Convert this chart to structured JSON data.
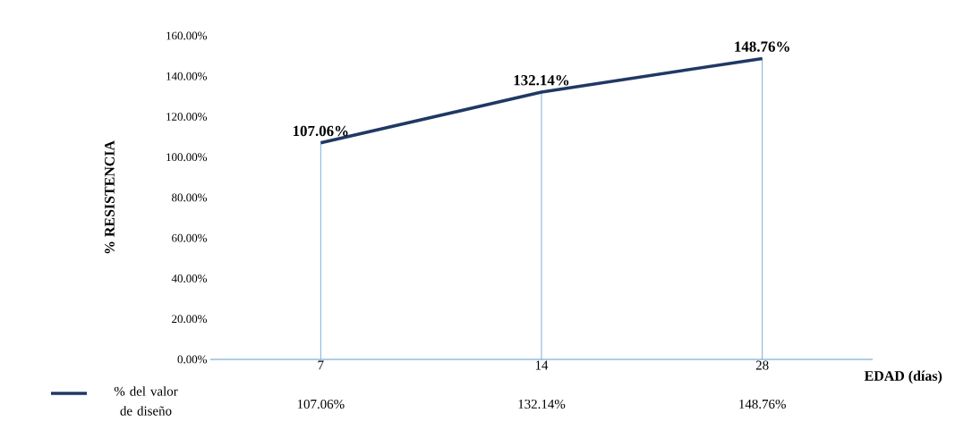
{
  "chart_data": {
    "type": "line",
    "ylabel": "% RESISTENCIA",
    "xlabel": "EDAD (días)",
    "categories": [
      "7",
      "14",
      "28"
    ],
    "series": [
      {
        "name": "% del valor de diseño",
        "color": "#203864",
        "values": [
          107.06,
          132.14,
          148.76
        ],
        "value_labels": [
          "107.06%",
          "132.14%",
          "148.76%"
        ]
      }
    ],
    "ylim": [
      0,
      160
    ],
    "yticks": [
      {
        "value": 0,
        "label": "0.00%"
      },
      {
        "value": 20,
        "label": "20.00%"
      },
      {
        "value": 40,
        "label": "40.00%"
      },
      {
        "value": 60,
        "label": "60.00%"
      },
      {
        "value": 80,
        "label": "80.00%"
      },
      {
        "value": 100,
        "label": "100.00%"
      },
      {
        "value": 120,
        "label": "120.00%"
      },
      {
        "value": 140,
        "label": "140.00%"
      },
      {
        "value": 160,
        "label": "160.00%"
      }
    ],
    "legend": "bottom",
    "marker": "none",
    "line_style": "solid"
  }
}
